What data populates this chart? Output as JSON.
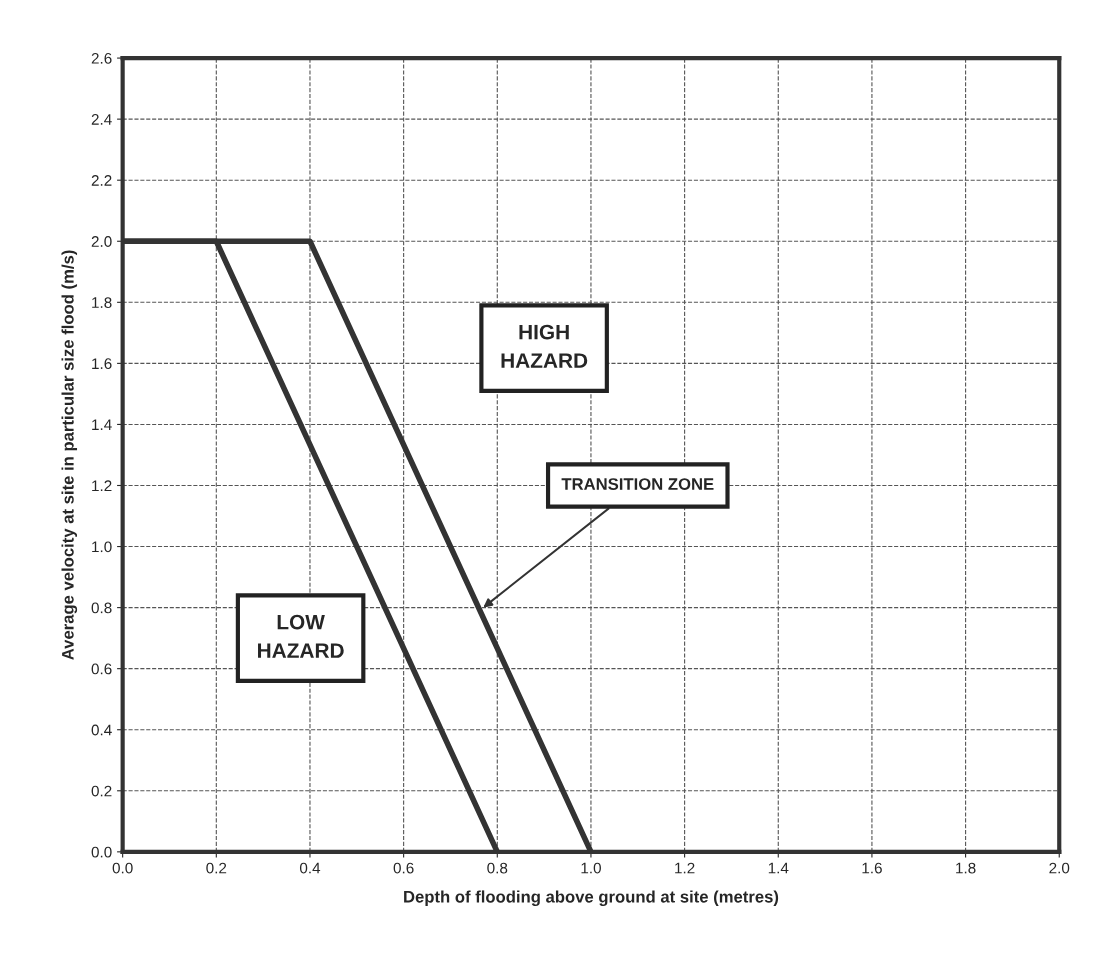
{
  "chart_data": {
    "type": "line",
    "xlabel": "Depth of flooding above ground at site (metres)",
    "ylabel": "Average velocity at site in particular size flood (m/s)",
    "series": [
      {
        "color": "#333333",
        "x": [
          0.0,
          0.2,
          0.8
        ],
        "values": [
          2.0,
          2.0,
          0.0
        ]
      },
      {
        "color": "#333333",
        "x": [
          0.0,
          0.4,
          1.0
        ],
        "values": [
          2.0,
          2.0,
          0.0
        ]
      }
    ],
    "xlim": [
      0.0,
      2.0
    ],
    "ylim": [
      0.0,
      2.6
    ],
    "xticks": [
      {
        "value": 0.0,
        "label": "0.0"
      },
      {
        "value": 0.2,
        "label": "0.2"
      },
      {
        "value": 0.4,
        "label": "0.4"
      },
      {
        "value": 0.6,
        "label": "0.6"
      },
      {
        "value": 0.8,
        "label": "0.8"
      },
      {
        "value": 1.0,
        "label": "1.0"
      },
      {
        "value": 1.2,
        "label": "1.2"
      },
      {
        "value": 1.4,
        "label": "1.4"
      },
      {
        "value": 1.6,
        "label": "1.6"
      },
      {
        "value": 1.8,
        "label": "1.8"
      },
      {
        "value": 2.0,
        "label": "2.0"
      }
    ],
    "yticks": [
      {
        "value": 0.0,
        "label": "0.0"
      },
      {
        "value": 0.2,
        "label": "0.2"
      },
      {
        "value": 0.4,
        "label": "0.4"
      },
      {
        "value": 0.6,
        "label": "0.6"
      },
      {
        "value": 0.8,
        "label": "0.8"
      },
      {
        "value": 1.0,
        "label": "1.0"
      },
      {
        "value": 1.2,
        "label": "1.2"
      },
      {
        "value": 1.4,
        "label": "1.4"
      },
      {
        "value": 1.6,
        "label": "1.6"
      },
      {
        "value": 1.8,
        "label": "1.8"
      },
      {
        "value": 2.0,
        "label": "2.0"
      },
      {
        "value": 2.2,
        "label": "2.2"
      },
      {
        "value": 2.4,
        "label": "2.4"
      },
      {
        "value": 2.6,
        "label": "2.6"
      }
    ],
    "grid": true,
    "line_style": "solid",
    "marker": "none",
    "legend": false,
    "annotations": [
      "HIGH\nHAZARD",
      "LOW\nHAZARD",
      {
        "text": "TRANSITION ZONE",
        "x": 0.77,
        "y": 0.8
      }
    ]
  }
}
